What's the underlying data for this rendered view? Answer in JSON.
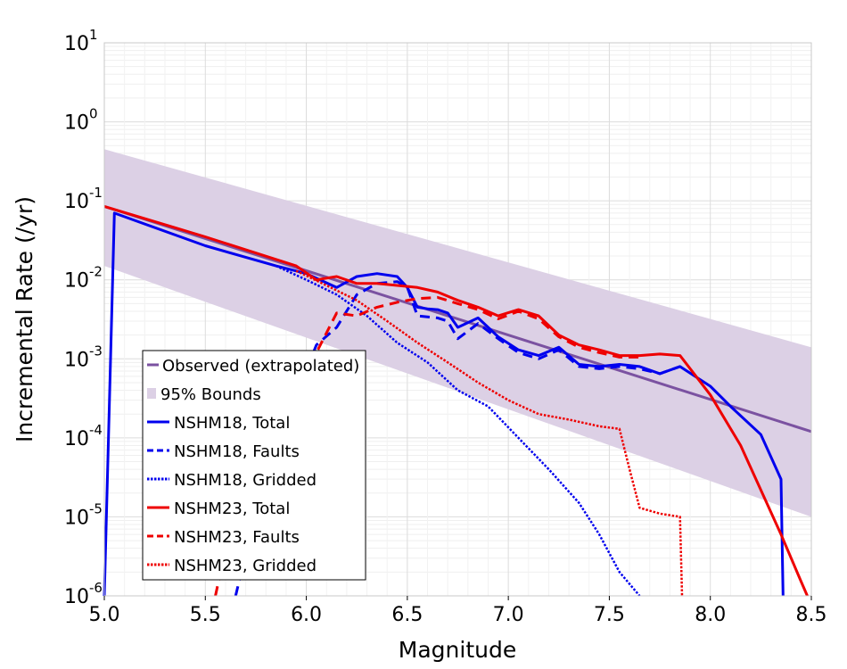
{
  "chart_data": {
    "type": "line",
    "title": "",
    "xlabel": "Magnitude",
    "ylabel": "Incremental Rate (/yr)",
    "xlim": [
      5.0,
      8.5
    ],
    "ylim": [
      1e-06,
      10
    ],
    "y_scale": "log",
    "grid": true,
    "legend_position": "bottom-left",
    "x_ticks": [
      "5.0",
      "5.5",
      "6.0",
      "6.5",
      "7.0",
      "7.5",
      "8.0",
      "8.5"
    ],
    "y_ticks": [
      {
        "base": "10",
        "exp": "-6"
      },
      {
        "base": "10",
        "exp": "-5"
      },
      {
        "base": "10",
        "exp": "-4"
      },
      {
        "base": "10",
        "exp": "-3"
      },
      {
        "base": "10",
        "exp": "-2"
      },
      {
        "base": "10",
        "exp": "-1"
      },
      {
        "base": "10",
        "exp": "0"
      },
      {
        "base": "10",
        "exp": "1"
      }
    ],
    "bounds": {
      "name": "95% Bounds",
      "color": "#dcd0e5",
      "x": [
        5.0,
        8.5
      ],
      "upper": [
        0.45,
        0.0014
      ],
      "lower": [
        0.015,
        1e-05
      ]
    },
    "series": [
      {
        "name": "Observed (extrapolated)",
        "color": "#7b52a1",
        "dash": "solid",
        "x": [
          5.0,
          8.5
        ],
        "y": [
          0.085,
          0.00012
        ]
      },
      {
        "name": "NSHM18, Total",
        "color": "#0000ee",
        "dash": "solid",
        "x": [
          5.0,
          5.05,
          5.5,
          5.85,
          6.0,
          6.15,
          6.25,
          6.35,
          6.45,
          6.5,
          6.55,
          6.6,
          6.65,
          6.7,
          6.75,
          6.85,
          6.95,
          7.05,
          7.15,
          7.25,
          7.35,
          7.45,
          7.55,
          7.65,
          7.75,
          7.85,
          8.0,
          8.1,
          8.25,
          8.35,
          8.36
        ],
        "y": [
          1e-06,
          0.07,
          0.027,
          0.015,
          0.012,
          0.008,
          0.011,
          0.012,
          0.011,
          0.008,
          0.0045,
          0.0043,
          0.0042,
          0.0038,
          0.0025,
          0.0033,
          0.0019,
          0.0013,
          0.0011,
          0.0014,
          0.00085,
          0.0008,
          0.00085,
          0.0008,
          0.00065,
          0.0008,
          0.00045,
          0.00025,
          0.00011,
          3e-05,
          1e-06
        ]
      },
      {
        "name": "NSHM18, Faults",
        "color": "#0000ee",
        "dash": "dashed",
        "x": [
          5.65,
          5.75,
          5.85,
          5.95,
          6.05,
          6.15,
          6.25,
          6.35,
          6.45,
          6.5,
          6.55,
          6.65,
          6.7,
          6.75,
          6.85,
          6.95,
          7.05,
          7.15,
          7.25,
          7.35,
          7.45,
          7.55,
          7.65,
          7.75,
          7.85
        ],
        "y": [
          1e-06,
          1.2e-05,
          0.0001,
          0.00035,
          0.0015,
          0.0025,
          0.0065,
          0.009,
          0.0095,
          0.008,
          0.0035,
          0.0033,
          0.003,
          0.0018,
          0.0028,
          0.0018,
          0.0012,
          0.001,
          0.0013,
          0.0008,
          0.00075,
          0.0008,
          0.00075,
          0.00065,
          0.0008
        ]
      },
      {
        "name": "NSHM18, Gridded",
        "color": "#0000ee",
        "dash": "dotted",
        "x": [
          5.85,
          6.0,
          6.15,
          6.3,
          6.45,
          6.6,
          6.75,
          6.9,
          7.05,
          7.2,
          7.35,
          7.45,
          7.55,
          7.65
        ],
        "y": [
          0.015,
          0.01,
          0.0065,
          0.0035,
          0.0016,
          0.0009,
          0.0004,
          0.00025,
          0.0001,
          4e-05,
          1.5e-05,
          6e-06,
          2e-06,
          1e-06
        ]
      },
      {
        "name": "NSHM23, Total",
        "color": "#ee0000",
        "dash": "solid",
        "x": [
          5.0,
          5.5,
          5.95,
          6.05,
          6.15,
          6.25,
          6.35,
          6.45,
          6.55,
          6.65,
          6.75,
          6.85,
          6.95,
          7.05,
          7.15,
          7.25,
          7.35,
          7.45,
          7.55,
          7.65,
          7.75,
          7.85,
          8.0,
          8.15,
          8.35,
          8.45,
          8.48
        ],
        "y": [
          0.085,
          0.035,
          0.015,
          0.01,
          0.011,
          0.009,
          0.009,
          0.0085,
          0.008,
          0.007,
          0.0055,
          0.0045,
          0.0035,
          0.0042,
          0.0035,
          0.002,
          0.0015,
          0.0013,
          0.0011,
          0.0011,
          0.00115,
          0.0011,
          0.00035,
          8e-05,
          6e-06,
          1.5e-06,
          1e-06
        ]
      },
      {
        "name": "NSHM23, Faults",
        "color": "#ee0000",
        "dash": "dashed",
        "x": [
          5.55,
          5.65,
          5.75,
          5.85,
          5.95,
          6.05,
          6.15,
          6.25,
          6.35,
          6.45,
          6.55,
          6.65,
          6.75,
          6.85,
          6.95,
          7.05,
          7.15,
          7.25,
          7.35,
          7.45,
          7.55,
          7.65
        ],
        "y": [
          1e-06,
          1.5e-05,
          0.00012,
          0.0003,
          0.0005,
          0.0012,
          0.0038,
          0.0035,
          0.0045,
          0.0052,
          0.0058,
          0.006,
          0.005,
          0.0042,
          0.0032,
          0.004,
          0.0032,
          0.0019,
          0.0014,
          0.0012,
          0.00105,
          0.00105
        ]
      },
      {
        "name": "NSHM23, Gridded",
        "color": "#ee0000",
        "dash": "dotted",
        "x": [
          5.95,
          6.1,
          6.25,
          6.4,
          6.55,
          6.7,
          6.85,
          7.0,
          7.15,
          7.3,
          7.45,
          7.55,
          7.6,
          7.65,
          7.75,
          7.85,
          7.86
        ],
        "y": [
          0.013,
          0.0085,
          0.0055,
          0.003,
          0.0016,
          0.0009,
          0.0005,
          0.0003,
          0.0002,
          0.00017,
          0.00014,
          0.00013,
          4e-05,
          1.3e-05,
          1.1e-05,
          1e-05,
          1e-06
        ]
      }
    ]
  }
}
